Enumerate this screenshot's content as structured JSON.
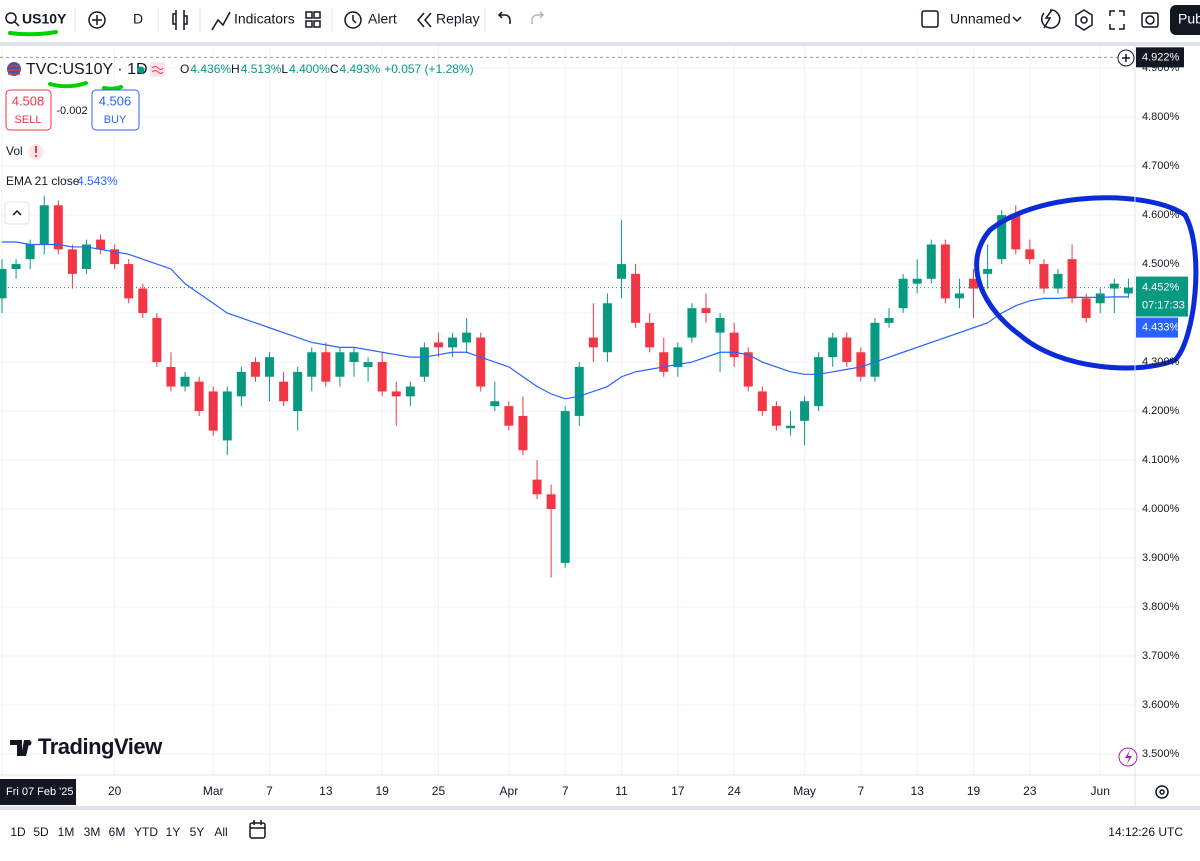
{
  "toolbar": {
    "symbol": "US10Y",
    "interval": "D",
    "indicators": "Indicators",
    "alert": "Alert",
    "replay": "Replay",
    "layout": "Unnamed",
    "publish": "Pub"
  },
  "legend": {
    "symbol": "TVC:US10Y · 1D",
    "ohlc": [
      {
        "key": "O",
        "value": "4.436%"
      },
      {
        "key": "H",
        "value": "4.513%"
      },
      {
        "key": "L",
        "value": "4.400%"
      },
      {
        "key": "C",
        "value": "4.493%"
      }
    ],
    "change": "+0.057 (+1.28%)",
    "sell": {
      "price": "4.508",
      "label": "SELL"
    },
    "spread": "-0.002",
    "buy": {
      "price": "4.506",
      "label": "BUY"
    },
    "vol": "Vol"
  },
  "watermark": "TradingView",
  "bottom_bar": {
    "ranges": [
      "1D",
      "5D",
      "1M",
      "3M",
      "6M",
      "YTD",
      "1Y",
      "5Y",
      "All"
    ],
    "clock": "14:12:26 UTC"
  },
  "chart_data": {
    "type": "candlestick",
    "categories": [
      "Fri 07 Feb '25",
      null,
      null,
      null,
      null,
      null,
      null,
      null,
      "20",
      null,
      null,
      null,
      null,
      null,
      null,
      "Mar",
      null,
      null,
      null,
      "7",
      null,
      null,
      null,
      "13",
      null,
      null,
      null,
      "19",
      null,
      null,
      null,
      "25",
      null,
      null,
      null,
      null,
      "Apr",
      null,
      null,
      null,
      "7",
      null,
      null,
      null,
      "11",
      null,
      null,
      null,
      "17",
      null,
      null,
      null,
      "24",
      null,
      null,
      null,
      null,
      "May",
      null,
      null,
      null,
      "7",
      null,
      null,
      null,
      "13",
      null,
      null,
      null,
      "19",
      null,
      null,
      null,
      "23",
      null,
      null,
      null,
      null,
      "Jun",
      null,
      null
    ],
    "open": [
      4.43,
      4.49,
      4.51,
      4.54,
      4.62,
      4.53,
      4.49,
      4.55,
      4.53,
      4.5,
      4.45,
      4.39,
      4.29,
      4.25,
      4.26,
      4.24,
      4.14,
      4.23,
      4.3,
      4.27,
      4.26,
      4.2,
      4.27,
      4.32,
      4.27,
      4.3,
      4.29,
      4.3,
      4.24,
      4.23,
      4.27,
      4.34,
      4.33,
      4.34,
      4.35,
      4.21,
      4.21,
      4.19,
      4.06,
      4.03,
      3.89,
      4.19,
      4.35,
      4.32,
      4.47,
      4.48,
      4.38,
      4.32,
      4.29,
      4.35,
      4.41,
      4.36,
      4.36,
      4.32,
      4.24,
      4.21,
      4.165,
      4.18,
      4.21,
      4.31,
      4.35,
      4.32,
      4.27,
      4.38,
      4.41,
      4.46,
      4.47,
      4.54,
      4.43,
      4.47,
      4.48,
      4.51,
      4.6,
      4.53,
      4.5,
      4.45,
      4.51,
      4.43,
      4.42,
      4.45,
      4.44
    ],
    "high": [
      4.51,
      4.51,
      4.55,
      4.64,
      4.63,
      4.54,
      4.55,
      4.56,
      4.54,
      4.51,
      4.46,
      4.4,
      4.32,
      4.28,
      4.27,
      4.25,
      4.25,
      4.29,
      4.31,
      4.32,
      4.28,
      4.29,
      4.33,
      4.34,
      4.33,
      4.33,
      4.31,
      4.32,
      4.26,
      4.26,
      4.34,
      4.36,
      4.36,
      4.39,
      4.36,
      4.26,
      4.22,
      4.23,
      4.1,
      4.05,
      4.21,
      4.3,
      4.42,
      4.44,
      4.59,
      4.5,
      4.4,
      4.35,
      4.34,
      4.42,
      4.44,
      4.4,
      4.38,
      4.33,
      4.25,
      4.22,
      4.2,
      4.23,
      4.32,
      4.36,
      4.36,
      4.33,
      4.39,
      4.41,
      4.48,
      4.51,
      4.55,
      4.55,
      4.47,
      4.49,
      4.54,
      4.61,
      4.62,
      4.55,
      4.51,
      4.49,
      4.54,
      4.44,
      4.45,
      4.47,
      4.47
    ],
    "low": [
      4.4,
      4.47,
      4.49,
      4.52,
      4.52,
      4.45,
      4.48,
      4.52,
      4.49,
      4.42,
      4.39,
      4.29,
      4.24,
      4.24,
      4.19,
      4.15,
      4.11,
      4.21,
      4.26,
      4.22,
      4.21,
      4.16,
      4.24,
      4.25,
      4.25,
      4.27,
      4.26,
      4.23,
      4.17,
      4.21,
      4.26,
      4.31,
      4.31,
      4.32,
      4.24,
      4.2,
      4.16,
      4.11,
      4.02,
      3.86,
      3.88,
      4.17,
      4.3,
      4.3,
      4.43,
      4.37,
      4.32,
      4.27,
      4.27,
      4.34,
      4.38,
      4.28,
      4.29,
      4.24,
      4.19,
      4.16,
      4.15,
      4.13,
      4.2,
      4.29,
      4.29,
      4.26,
      4.26,
      4.37,
      4.4,
      4.44,
      4.46,
      4.42,
      4.41,
      4.39,
      4.45,
      4.5,
      4.52,
      4.5,
      4.44,
      4.44,
      4.42,
      4.38,
      4.4,
      4.4,
      4.43
    ],
    "close": [
      4.49,
      4.5,
      4.54,
      4.62,
      4.53,
      4.48,
      4.54,
      4.53,
      4.5,
      4.43,
      4.4,
      4.3,
      4.25,
      4.27,
      4.2,
      4.16,
      4.24,
      4.28,
      4.27,
      4.31,
      4.22,
      4.28,
      4.32,
      4.26,
      4.32,
      4.32,
      4.3,
      4.24,
      4.23,
      4.25,
      4.33,
      4.33,
      4.35,
      4.36,
      4.25,
      4.22,
      4.17,
      4.12,
      4.03,
      4.0,
      4.2,
      4.29,
      4.33,
      4.42,
      4.5,
      4.38,
      4.33,
      4.28,
      4.33,
      4.41,
      4.4,
      4.39,
      4.31,
      4.25,
      4.2,
      4.17,
      4.17,
      4.22,
      4.31,
      4.35,
      4.3,
      4.27,
      4.38,
      4.39,
      4.47,
      4.47,
      4.54,
      4.43,
      4.44,
      4.45,
      4.49,
      4.6,
      4.53,
      4.51,
      4.45,
      4.48,
      4.43,
      4.39,
      4.44,
      4.46,
      4.452
    ],
    "up_color": "#089981",
    "down_color": "#f23645",
    "ema": {
      "name": "EMA 21 close",
      "color": "#2962ff",
      "legend_label": "4.543%",
      "last_label": "4.433%",
      "values": [
        4.545,
        4.545,
        4.54,
        4.54,
        4.54,
        4.535,
        4.535,
        4.53,
        4.525,
        4.52,
        4.51,
        4.5,
        4.49,
        4.46,
        4.44,
        4.42,
        4.4,
        4.39,
        4.38,
        4.37,
        4.36,
        4.35,
        4.34,
        4.335,
        4.33,
        4.33,
        4.325,
        4.32,
        4.315,
        4.31,
        4.31,
        4.315,
        4.32,
        4.32,
        4.31,
        4.3,
        4.29,
        4.27,
        4.25,
        4.235,
        4.225,
        4.23,
        4.24,
        4.25,
        4.27,
        4.28,
        4.285,
        4.29,
        4.295,
        4.3,
        4.31,
        4.32,
        4.32,
        4.315,
        4.3,
        4.29,
        4.28,
        4.275,
        4.275,
        4.28,
        4.285,
        4.29,
        4.3,
        4.31,
        4.32,
        4.33,
        4.34,
        4.35,
        4.36,
        4.37,
        4.38,
        4.4,
        4.415,
        4.425,
        4.43,
        4.43,
        4.432,
        4.432,
        4.432,
        4.433,
        4.433
      ]
    },
    "last_price": {
      "value": 4.452,
      "label": "4.452%"
    },
    "countdown": "07:17:33",
    "crosshair": {
      "value": 4.922,
      "label": "4.922%"
    },
    "ylim": [
      3.457,
      4.937
    ],
    "yticks": [
      {
        "value": 3.5,
        "label": "3.500%"
      },
      {
        "value": 3.6,
        "label": "3.600%"
      },
      {
        "value": 3.7,
        "label": "3.700%"
      },
      {
        "value": 3.8,
        "label": "3.800%"
      },
      {
        "value": 3.9,
        "label": "3.900%"
      },
      {
        "value": 4.0,
        "label": "4.000%"
      },
      {
        "value": 4.1,
        "label": "4.100%"
      },
      {
        "value": 4.2,
        "label": "4.200%"
      },
      {
        "value": 4.3,
        "label": "4.300%"
      },
      {
        "value": 4.4,
        "label": "4.400%"
      },
      {
        "value": 4.5,
        "label": "4.500%"
      },
      {
        "value": 4.6,
        "label": "4.600%"
      },
      {
        "value": 4.7,
        "label": "4.700%"
      },
      {
        "value": 4.8,
        "label": "4.800%"
      },
      {
        "value": 4.9,
        "label": "4.900%"
      }
    ],
    "grid": true
  }
}
